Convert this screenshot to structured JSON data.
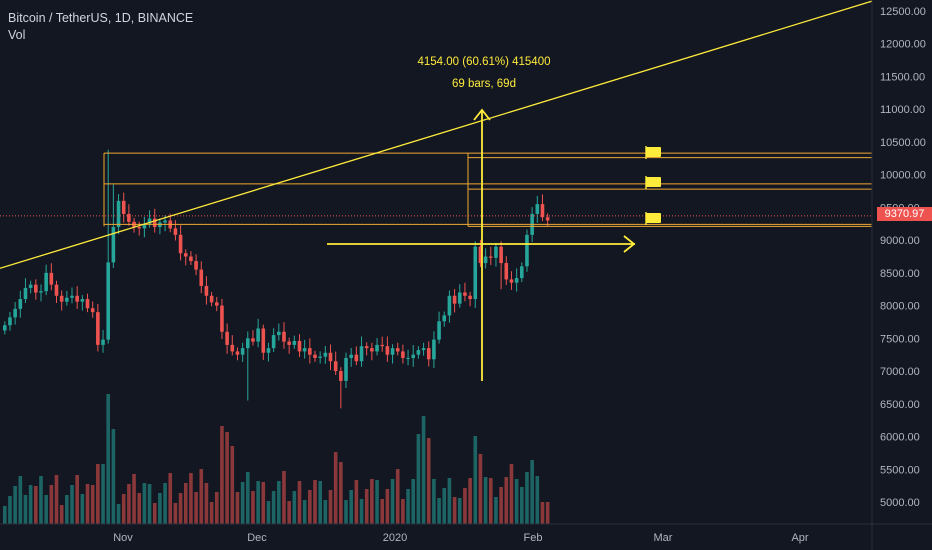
{
  "legend": {
    "symbol": "Bitcoin / TetherUS, 1D, BINANCE",
    "volume": "Vol"
  },
  "measure": {
    "line1": "4154.00 (60.61%) 415400",
    "line2": "69 bars, 69d"
  },
  "last_price": "9370.97",
  "colors": {
    "up": "#26a69a",
    "down": "#ef5350",
    "drawing": "#ffeb3b",
    "hline": "#f0a830",
    "background": "#131722"
  },
  "chart_data": {
    "type": "candlestick",
    "symbol": "Bitcoin / TetherUS",
    "interval": "1D",
    "exchange": "BINANCE",
    "y_ticks": [
      "12500.00",
      "12000.00",
      "11500.00",
      "11000.00",
      "10500.00",
      "10000.00",
      "9500.00",
      "9000.00",
      "8500.00",
      "8000.00",
      "7500.00",
      "7000.00",
      "6500.00",
      "6000.00",
      "5500.00",
      "5000.00"
    ],
    "x_ticks": [
      "Nov",
      "Dec",
      "2020",
      "Feb",
      "Mar",
      "Apr"
    ],
    "ylim": [
      4800,
      12700
    ],
    "last_price": 9370.97,
    "candles_close": [
      7700,
      7820,
      7950,
      8100,
      8270,
      8320,
      8200,
      8220,
      8500,
      8320,
      8150,
      8060,
      8120,
      8150,
      8060,
      8100,
      7960,
      7900,
      7400,
      7480,
      8660,
      9200,
      9600,
      9400,
      9280,
      9200,
      9180,
      9250,
      9330,
      9200,
      9270,
      9300,
      9180,
      9080,
      8800,
      8750,
      8680,
      8550,
      8300,
      8150,
      8050,
      8000,
      7600,
      7400,
      7300,
      7250,
      7350,
      7500,
      7450,
      7650,
      7280,
      7350,
      7550,
      7600,
      7450,
      7400,
      7460,
      7300,
      7350,
      7250,
      7200,
      7220,
      7280,
      7150,
      7000,
      6850,
      7200,
      7250,
      7150,
      7380,
      7350,
      7300,
      7400,
      7380,
      7250,
      7350,
      7300,
      7200,
      7200,
      7250,
      7320,
      7350,
      7180,
      7480,
      7760,
      7850,
      8150,
      8030,
      8200,
      8150,
      8100,
      8900,
      8650,
      8750,
      8730,
      8900,
      8650,
      8400,
      8350,
      8420,
      8600,
      9080,
      9400,
      9550,
      9350,
      9300
    ],
    "hlines": [
      10330,
      10260,
      9860,
      9780,
      9240,
      9210
    ],
    "trendline": {
      "from": {
        "date": "2019-10",
        "price": 8570
      },
      "to": {
        "date": "2020-04",
        "price": 12650
      }
    },
    "measure": {
      "change": 4154.0,
      "percent": 60.61,
      "ticks": 415400,
      "bars": 69,
      "days": 69
    }
  }
}
